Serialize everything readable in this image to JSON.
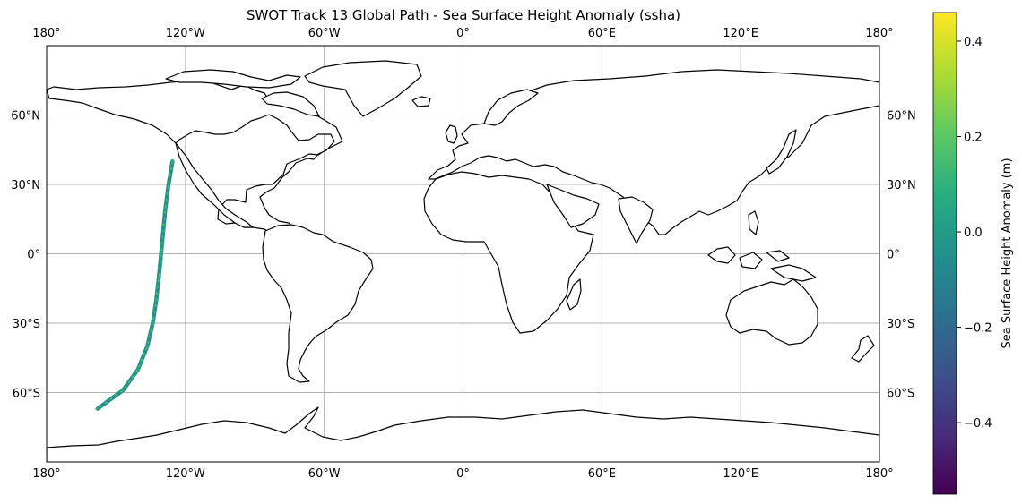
{
  "title": "SWOT Track 13 Global Path - Sea Surface Height Anomaly (ssha)",
  "map": {
    "projection": "PlateCarree",
    "lon_range": [
      -180,
      180
    ],
    "lat_range": [
      -90,
      90
    ],
    "gridlines": true,
    "lon_ticks": [
      -180,
      -120,
      -60,
      0,
      60,
      120,
      180
    ],
    "lon_tick_labels": [
      "180°",
      "120°W",
      "60°W",
      "0°",
      "60°E",
      "120°E",
      "180°"
    ],
    "lat_ticks": [
      60,
      30,
      0,
      -30,
      -60
    ],
    "lat_tick_labels": [
      "60°N",
      "30°N",
      "0°",
      "30°S",
      "60°S"
    ],
    "land_color": "#ffffff",
    "coastline_color": "#000000",
    "grid_color": "#b0b0b0"
  },
  "colorbar": {
    "label": "Sea Surface Height Anomaly (m)",
    "colormap": "viridis",
    "vmin": -0.55,
    "vmax": 0.46,
    "ticks": [
      0.4,
      0.2,
      0.0,
      -0.2,
      -0.4
    ],
    "tick_labels": [
      "0.4",
      "0.2",
      "0.0",
      "−0.2",
      "−0.4"
    ]
  },
  "chart_data": {
    "type": "scatter",
    "title": "SWOT Track 13 Global Path - Sea Surface Height Anomaly (ssha)",
    "series": [
      {
        "name": "",
        "description_value": "ssha (m)",
        "track": [
          {
            "lon": -125.6,
            "lat": 40.0,
            "ssha": 0.05
          },
          {
            "lon": -127.3,
            "lat": 30.0,
            "ssha": 0.05
          },
          {
            "lon": -128.6,
            "lat": 20.0,
            "ssha": 0.05
          },
          {
            "lon": -129.6,
            "lat": 10.0,
            "ssha": 0.05
          },
          {
            "lon": -130.5,
            "lat": 0.0,
            "ssha": 0.05
          },
          {
            "lon": -131.5,
            "lat": -10.0,
            "ssha": 0.05
          },
          {
            "lon": -132.6,
            "lat": -20.0,
            "ssha": 0.05
          },
          {
            "lon": -134.1,
            "lat": -30.0,
            "ssha": 0.05
          },
          {
            "lon": -136.5,
            "lat": -40.0,
            "ssha": 0.05
          },
          {
            "lon": -140.5,
            "lat": -50.0,
            "ssha": 0.05
          },
          {
            "lon": -147.0,
            "lat": -59.0,
            "ssha": 0.05
          },
          {
            "lon": -158.0,
            "lat": -67.0,
            "ssha": 0.05
          }
        ]
      }
    ],
    "xlabel": "",
    "ylabel": "",
    "xlim": [
      -180,
      180
    ],
    "ylim": [
      -90,
      90
    ],
    "grid": true
  }
}
